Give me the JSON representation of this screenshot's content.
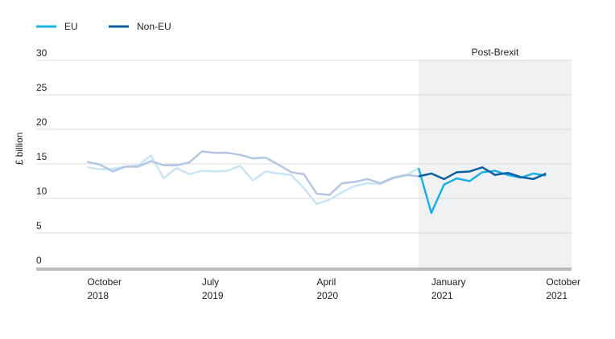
{
  "chart_data": {
    "type": "line",
    "y_label": "£ billion",
    "x": [
      "2018-10",
      "2018-11",
      "2018-12",
      "2019-01",
      "2019-02",
      "2019-03",
      "2019-04",
      "2019-05",
      "2019-06",
      "2019-07",
      "2019-08",
      "2019-09",
      "2019-10",
      "2019-11",
      "2019-12",
      "2020-01",
      "2020-02",
      "2020-03",
      "2020-04",
      "2020-05",
      "2020-06",
      "2020-07",
      "2020-08",
      "2020-09",
      "2020-10",
      "2020-11",
      "2020-12",
      "2021-01",
      "2021-02",
      "2021-03",
      "2021-04",
      "2021-05",
      "2021-06",
      "2021-07",
      "2021-08",
      "2021-09",
      "2021-10"
    ],
    "series": [
      {
        "name": "EU",
        "color": "#1ab0e6",
        "faded_color": "#c9e4f4",
        "values": [
          14.5,
          14.2,
          14.3,
          14.6,
          14.8,
          16.2,
          12.9,
          14.4,
          13.5,
          14.0,
          13.9,
          14.0,
          14.7,
          12.6,
          13.9,
          13.6,
          13.4,
          11.5,
          9.2,
          9.8,
          10.9,
          11.8,
          12.2,
          12.1,
          12.9,
          13.3,
          14.4,
          7.9,
          12.0,
          12.9,
          12.5,
          13.8,
          14.0,
          13.4,
          13.0,
          13.6,
          13.3
        ]
      },
      {
        "name": "Non-EU",
        "color": "#0a5fa0",
        "faded_color": "#b4c6e0",
        "values": [
          15.3,
          14.9,
          13.9,
          14.6,
          14.6,
          15.4,
          14.8,
          14.8,
          15.2,
          16.8,
          16.6,
          16.6,
          16.3,
          15.8,
          15.9,
          14.9,
          13.8,
          13.5,
          10.7,
          10.5,
          12.2,
          12.4,
          12.8,
          12.2,
          13.0,
          13.4,
          13.2,
          13.6,
          12.8,
          13.8,
          13.9,
          14.5,
          13.4,
          13.7,
          13.1,
          12.8,
          13.6
        ]
      }
    ],
    "highlight_from": "2020-12",
    "shaded_region": {
      "from": "2020-12",
      "to": "2021-12",
      "label": "Post-Brexit"
    },
    "xlim": [
      "2018-06",
      "2021-12"
    ],
    "xticks": [
      {
        "value": "2018-10",
        "label": "October 2018"
      },
      {
        "value": "2019-07",
        "label": "July 2019"
      },
      {
        "value": "2020-04",
        "label": "April 2020"
      },
      {
        "value": "2021-01",
        "label": "January 2021"
      },
      {
        "value": "2021-10",
        "label": "October 2021"
      }
    ],
    "ylim": [
      0,
      30
    ],
    "yticks": [
      0,
      5,
      10,
      15,
      20,
      25,
      30
    ],
    "grid": true,
    "legend": "top-left"
  }
}
